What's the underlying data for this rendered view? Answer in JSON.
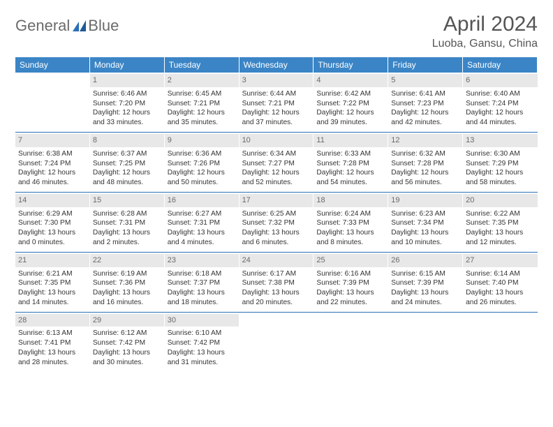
{
  "brand": {
    "word1": "General",
    "word2": "Blue"
  },
  "header": {
    "title": "April 2024",
    "location": "Luoba, Gansu, China"
  },
  "colors": {
    "header_bg": "#3b85c6",
    "header_text": "#ffffff",
    "daynum_bg": "#e8e8e8",
    "daynum_text": "#6a6a6a",
    "rule": "#2b6fb5",
    "body_text": "#333333",
    "page_bg": "#ffffff",
    "logo_gray": "#6b6b6b",
    "logo_blue": "#2b6fb5"
  },
  "typography": {
    "title_fontsize_pt": 22,
    "location_fontsize_pt": 12,
    "header_fontsize_pt": 9,
    "cell_fontsize_pt": 7.7,
    "daynum_fontsize_pt": 8.5
  },
  "calendar": {
    "type": "table",
    "dayHeaders": [
      "Sunday",
      "Monday",
      "Tuesday",
      "Wednesday",
      "Thursday",
      "Friday",
      "Saturday"
    ],
    "startWeekday": 1,
    "daysInMonth": 30,
    "rows": 5,
    "days": [
      {
        "n": 1,
        "sunrise": "6:46 AM",
        "sunset": "7:20 PM",
        "daylight": "12 hours and 33 minutes."
      },
      {
        "n": 2,
        "sunrise": "6:45 AM",
        "sunset": "7:21 PM",
        "daylight": "12 hours and 35 minutes."
      },
      {
        "n": 3,
        "sunrise": "6:44 AM",
        "sunset": "7:21 PM",
        "daylight": "12 hours and 37 minutes."
      },
      {
        "n": 4,
        "sunrise": "6:42 AM",
        "sunset": "7:22 PM",
        "daylight": "12 hours and 39 minutes."
      },
      {
        "n": 5,
        "sunrise": "6:41 AM",
        "sunset": "7:23 PM",
        "daylight": "12 hours and 42 minutes."
      },
      {
        "n": 6,
        "sunrise": "6:40 AM",
        "sunset": "7:24 PM",
        "daylight": "12 hours and 44 minutes."
      },
      {
        "n": 7,
        "sunrise": "6:38 AM",
        "sunset": "7:24 PM",
        "daylight": "12 hours and 46 minutes."
      },
      {
        "n": 8,
        "sunrise": "6:37 AM",
        "sunset": "7:25 PM",
        "daylight": "12 hours and 48 minutes."
      },
      {
        "n": 9,
        "sunrise": "6:36 AM",
        "sunset": "7:26 PM",
        "daylight": "12 hours and 50 minutes."
      },
      {
        "n": 10,
        "sunrise": "6:34 AM",
        "sunset": "7:27 PM",
        "daylight": "12 hours and 52 minutes."
      },
      {
        "n": 11,
        "sunrise": "6:33 AM",
        "sunset": "7:28 PM",
        "daylight": "12 hours and 54 minutes."
      },
      {
        "n": 12,
        "sunrise": "6:32 AM",
        "sunset": "7:28 PM",
        "daylight": "12 hours and 56 minutes."
      },
      {
        "n": 13,
        "sunrise": "6:30 AM",
        "sunset": "7:29 PM",
        "daylight": "12 hours and 58 minutes."
      },
      {
        "n": 14,
        "sunrise": "6:29 AM",
        "sunset": "7:30 PM",
        "daylight": "13 hours and 0 minutes."
      },
      {
        "n": 15,
        "sunrise": "6:28 AM",
        "sunset": "7:31 PM",
        "daylight": "13 hours and 2 minutes."
      },
      {
        "n": 16,
        "sunrise": "6:27 AM",
        "sunset": "7:31 PM",
        "daylight": "13 hours and 4 minutes."
      },
      {
        "n": 17,
        "sunrise": "6:25 AM",
        "sunset": "7:32 PM",
        "daylight": "13 hours and 6 minutes."
      },
      {
        "n": 18,
        "sunrise": "6:24 AM",
        "sunset": "7:33 PM",
        "daylight": "13 hours and 8 minutes."
      },
      {
        "n": 19,
        "sunrise": "6:23 AM",
        "sunset": "7:34 PM",
        "daylight": "13 hours and 10 minutes."
      },
      {
        "n": 20,
        "sunrise": "6:22 AM",
        "sunset": "7:35 PM",
        "daylight": "13 hours and 12 minutes."
      },
      {
        "n": 21,
        "sunrise": "6:21 AM",
        "sunset": "7:35 PM",
        "daylight": "13 hours and 14 minutes."
      },
      {
        "n": 22,
        "sunrise": "6:19 AM",
        "sunset": "7:36 PM",
        "daylight": "13 hours and 16 minutes."
      },
      {
        "n": 23,
        "sunrise": "6:18 AM",
        "sunset": "7:37 PM",
        "daylight": "13 hours and 18 minutes."
      },
      {
        "n": 24,
        "sunrise": "6:17 AM",
        "sunset": "7:38 PM",
        "daylight": "13 hours and 20 minutes."
      },
      {
        "n": 25,
        "sunrise": "6:16 AM",
        "sunset": "7:39 PM",
        "daylight": "13 hours and 22 minutes."
      },
      {
        "n": 26,
        "sunrise": "6:15 AM",
        "sunset": "7:39 PM",
        "daylight": "13 hours and 24 minutes."
      },
      {
        "n": 27,
        "sunrise": "6:14 AM",
        "sunset": "7:40 PM",
        "daylight": "13 hours and 26 minutes."
      },
      {
        "n": 28,
        "sunrise": "6:13 AM",
        "sunset": "7:41 PM",
        "daylight": "13 hours and 28 minutes."
      },
      {
        "n": 29,
        "sunrise": "6:12 AM",
        "sunset": "7:42 PM",
        "daylight": "13 hours and 30 minutes."
      },
      {
        "n": 30,
        "sunrise": "6:10 AM",
        "sunset": "7:42 PM",
        "daylight": "13 hours and 31 minutes."
      }
    ],
    "labels": {
      "sunrise": "Sunrise:",
      "sunset": "Sunset:",
      "daylight": "Daylight:"
    }
  }
}
